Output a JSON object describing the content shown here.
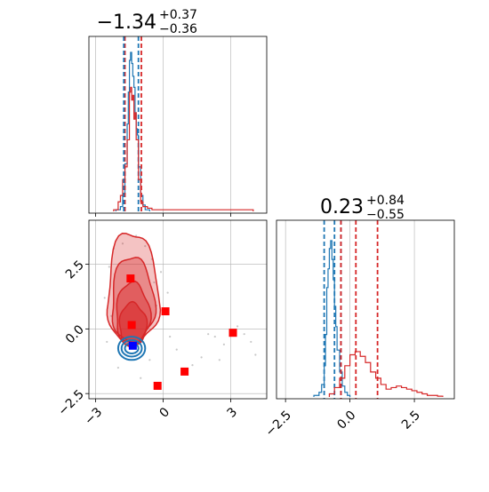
{
  "colors": {
    "blue": "#1f77b4",
    "red": "#d62728",
    "marker_red": "#ff0000",
    "marker_blue": "#0000ff",
    "grid": "#b0b0b0",
    "points": "#c8c8c8"
  },
  "titles": {
    "param1": {
      "main": "−1.34",
      "plus": "+0.37",
      "minus": "−0.36"
    },
    "param2": {
      "main": "0.23",
      "plus": "+0.84",
      "minus": "−0.55"
    }
  },
  "chart_data": [
    {
      "type": "histogram",
      "panel": "marginal-param1",
      "xlim": [
        -3.3,
        4.6
      ],
      "grid": true,
      "series": [
        {
          "color": "blue",
          "x": [
            -2.1,
            -1.9,
            -1.8,
            -1.7,
            -1.6,
            -1.55,
            -1.5,
            -1.45,
            -1.4,
            -1.35,
            -1.3,
            -1.25,
            -1.2,
            -1.15,
            -1.1,
            -1.0,
            -0.9,
            -0.8,
            -0.6
          ],
          "y": [
            0.01,
            0.03,
            0.1,
            0.3,
            0.55,
            0.75,
            0.95,
            1.0,
            0.93,
            0.85,
            0.78,
            0.62,
            0.52,
            0.48,
            0.28,
            0.1,
            0.04,
            0.01,
            0.0
          ],
          "quantiles": [
            -1.1
          ]
        },
        {
          "color": "red",
          "x": [
            -2.2,
            -2.0,
            -1.9,
            -1.8,
            -1.7,
            -1.6,
            -1.5,
            -1.45,
            -1.4,
            -1.35,
            -1.3,
            -1.25,
            -1.2,
            -1.1,
            -1.0,
            -0.9,
            -0.7,
            -0.5,
            0.0,
            2.4,
            2.8,
            3.2,
            4.0
          ],
          "y": [
            0.01,
            0.06,
            0.1,
            0.2,
            0.28,
            0.45,
            0.75,
            0.78,
            0.7,
            0.73,
            0.58,
            0.62,
            0.45,
            0.2,
            0.06,
            0.03,
            0.02,
            0.01,
            0.01,
            0.01,
            0.01,
            0.01,
            0.0
          ],
          "quantiles": [
            -1.7,
            -0.97
          ]
        }
      ],
      "extra_quantile_lines": [
        {
          "color": "blue",
          "x": -1.75
        }
      ]
    },
    {
      "type": "histogram",
      "panel": "marginal-param2",
      "xlim": [
        -2.85,
        4.05
      ],
      "xticks": [
        -2.5,
        0.0,
        2.5
      ],
      "xtick_labels": [
        "−2.5",
        "0.0",
        "2.5"
      ],
      "grid": true,
      "series": [
        {
          "color": "blue",
          "x": [
            -1.4,
            -1.2,
            -1.1,
            -1.0,
            -0.95,
            -0.9,
            -0.85,
            -0.8,
            -0.75,
            -0.7,
            -0.65,
            -0.6,
            -0.55,
            -0.5,
            -0.4,
            -0.3,
            -0.2,
            -0.1,
            0.0
          ],
          "y": [
            0.01,
            0.03,
            0.08,
            0.2,
            0.4,
            0.7,
            0.82,
            0.95,
            1.0,
            0.88,
            0.75,
            0.58,
            0.45,
            0.3,
            0.16,
            0.07,
            0.03,
            0.01,
            0.0
          ],
          "quantiles": [
            -1.0,
            -0.6,
            -0.35
          ]
        },
        {
          "color": "red",
          "x": [
            -0.8,
            -0.6,
            -0.4,
            -0.2,
            0.0,
            0.2,
            0.4,
            0.6,
            0.8,
            1.0,
            1.2,
            1.4,
            1.6,
            1.8,
            2.0,
            2.2,
            2.4,
            2.6,
            2.8,
            3.0,
            3.2,
            3.4,
            3.6
          ],
          "y": [
            0.02,
            0.06,
            0.12,
            0.2,
            0.27,
            0.29,
            0.26,
            0.22,
            0.16,
            0.12,
            0.08,
            0.05,
            0.06,
            0.07,
            0.06,
            0.05,
            0.04,
            0.03,
            0.02,
            0.01,
            0.01,
            0.005,
            0.0
          ],
          "quantiles": [
            -0.35,
            0.23,
            1.07
          ]
        }
      ]
    },
    {
      "type": "contour",
      "panel": "joint-param1-param2",
      "xlim": [
        -3.3,
        4.6
      ],
      "ylim": [
        -2.7,
        4.2
      ],
      "xticks": [
        -3,
        0,
        3
      ],
      "xtick_labels": [
        "−3",
        "0",
        "3"
      ],
      "yticks": [
        -2.5,
        0.0,
        2.5
      ],
      "ytick_labels": [
        "−2.5",
        "0.0",
        "2.5"
      ],
      "grid": true,
      "red_contour_levels": [
        {
          "center": [
            -1.35,
            0.95
          ],
          "rx": 1.15,
          "ry_top": 2.8,
          "ry_bottom": 1.55,
          "fill_opacity": 0.5
        },
        {
          "center": [
            -1.35,
            0.8
          ],
          "rx": 0.95,
          "ry_top": 2.0,
          "ry_bottom": 1.3,
          "fill_opacity": 0.65
        },
        {
          "center": [
            -1.35,
            0.4
          ],
          "rx": 0.75,
          "ry_top": 1.4,
          "ry_bottom": 0.95,
          "fill_opacity": 0.8
        },
        {
          "center": [
            -1.35,
            0.1
          ],
          "rx": 0.6,
          "ry_top": 0.9,
          "ry_bottom": 0.75,
          "fill_opacity": 0.95
        }
      ],
      "blue_contour_levels": [
        {
          "center": [
            -1.4,
            -0.75
          ],
          "rx": 0.6,
          "ry": 0.45
        },
        {
          "center": [
            -1.4,
            -0.75
          ],
          "rx": 0.45,
          "ry": 0.32
        },
        {
          "center": [
            -1.4,
            -0.75
          ],
          "rx": 0.3,
          "ry": 0.2
        }
      ],
      "red_markers": [
        {
          "x": -1.45,
          "y": 1.95
        },
        {
          "x": 0.1,
          "y": 0.68
        },
        {
          "x": -1.4,
          "y": 0.15
        },
        {
          "x": 3.1,
          "y": -0.15
        },
        {
          "x": 0.95,
          "y": -1.65
        },
        {
          "x": -0.25,
          "y": -2.2
        }
      ],
      "blue_markers": [
        {
          "x": -1.35,
          "y": -0.65
        }
      ],
      "scatter_points": [
        [
          -2.2,
          3.1
        ],
        [
          -1.8,
          3.3
        ],
        [
          -1.2,
          3.6
        ],
        [
          -0.8,
          3.2
        ],
        [
          -0.5,
          2.7
        ],
        [
          -2.4,
          2.4
        ],
        [
          -0.4,
          1.8
        ],
        [
          -2.6,
          1.2
        ],
        [
          -0.3,
          0.9
        ],
        [
          -2.5,
          -0.5
        ],
        [
          -0.6,
          -1.2
        ],
        [
          0.2,
          1.4
        ],
        [
          -0.1,
          2.2
        ],
        [
          -2.0,
          -1.5
        ],
        [
          2.0,
          -0.2
        ],
        [
          2.3,
          -0.3
        ],
        [
          2.7,
          -0.6
        ],
        [
          3.6,
          -0.2
        ],
        [
          3.9,
          -0.5
        ],
        [
          4.1,
          -1.0
        ],
        [
          1.7,
          -1.1
        ],
        [
          1.3,
          -1.4
        ],
        [
          0.6,
          -0.8
        ],
        [
          2.5,
          -1.2
        ],
        [
          0.3,
          -0.3
        ],
        [
          3.3,
          0.1
        ],
        [
          -1.0,
          -1.9
        ],
        [
          -2.3,
          0.5
        ]
      ]
    }
  ]
}
